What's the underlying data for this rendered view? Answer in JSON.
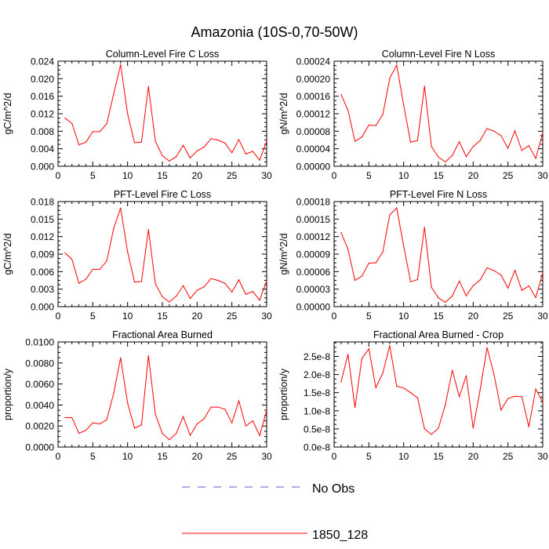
{
  "page_title": "Amazonia (10S-0,70-50W)",
  "legend": {
    "items": [
      {
        "label": "No Obs",
        "color": "#5b5bd6",
        "style": "dashed"
      },
      {
        "label": "1850_128",
        "color": "#ff0000",
        "style": "solid"
      }
    ]
  },
  "chart_data": [
    {
      "type": "line",
      "title": "Column-Level Fire C Loss",
      "ylabel": "gC/m^2/d",
      "xlabel": "",
      "xlim": [
        0,
        30
      ],
      "ylim": [
        0,
        0.024
      ],
      "x_ticks": [
        0,
        5,
        10,
        15,
        20,
        25,
        30
      ],
      "y_ticks": [
        0,
        0.004,
        0.008,
        0.012,
        0.016,
        0.02,
        0.024
      ],
      "y_tick_labels": [
        "0.000",
        "0.004",
        "0.008",
        "0.012",
        "0.016",
        "0.020",
        "0.024"
      ],
      "series": [
        {
          "name": "1850_128",
          "color": "#ff0000",
          "x": [
            1,
            2,
            3,
            4,
            5,
            6,
            7,
            8,
            9,
            10,
            11,
            12,
            13,
            14,
            15,
            16,
            17,
            18,
            19,
            20,
            21,
            22,
            23,
            24,
            25,
            26,
            27,
            28,
            29,
            30
          ],
          "values": [
            0.011,
            0.0098,
            0.0049,
            0.0055,
            0.0079,
            0.0079,
            0.0097,
            0.0165,
            0.0232,
            0.012,
            0.0054,
            0.0055,
            0.0182,
            0.0057,
            0.0024,
            0.0012,
            0.0022,
            0.0048,
            0.0019,
            0.0035,
            0.0044,
            0.0063,
            0.006,
            0.0053,
            0.0031,
            0.0061,
            0.0028,
            0.0034,
            0.0014,
            0.0057
          ]
        }
      ]
    },
    {
      "type": "line",
      "title": "Column-Level Fire N Loss",
      "ylabel": "gN/m^2/d",
      "xlabel": "",
      "xlim": [
        0,
        30
      ],
      "ylim": [
        0,
        0.00024
      ],
      "x_ticks": [
        0,
        5,
        10,
        15,
        20,
        25,
        30
      ],
      "y_ticks": [
        0,
        4e-05,
        8e-05,
        0.00012,
        0.00016,
        0.0002,
        0.00024
      ],
      "y_tick_labels": [
        "0.00000",
        "0.00004",
        "0.00008",
        "0.00012",
        "0.00016",
        "0.00020",
        "0.00024"
      ],
      "series": [
        {
          "name": "1850_128",
          "color": "#ff0000",
          "x": [
            1,
            2,
            3,
            4,
            5,
            6,
            7,
            8,
            9,
            10,
            11,
            12,
            13,
            14,
            15,
            16,
            17,
            18,
            19,
            20,
            21,
            22,
            23,
            24,
            25,
            26,
            27,
            28,
            29,
            30
          ],
          "values": [
            0.000164,
            0.000128,
            5.7e-05,
            6.7e-05,
            9.4e-05,
            9.3e-05,
            0.000118,
            0.000201,
            0.000231,
            0.00014,
            5.5e-05,
            5.9e-05,
            0.000183,
            4.5e-05,
            2.1e-05,
            1e-05,
            2.5e-05,
            5.6e-05,
            2.2e-05,
            4.5e-05,
            5.9e-05,
            8.6e-05,
            8e-05,
            7e-05,
            4.1e-05,
            8.1e-05,
            3.6e-05,
            4.7e-05,
            1.8e-05,
            7.7e-05
          ]
        }
      ]
    },
    {
      "type": "line",
      "title": "PFT-Level Fire C Loss",
      "ylabel": "gC/m^2/d",
      "xlabel": "",
      "xlim": [
        0,
        30
      ],
      "ylim": [
        0,
        0.018
      ],
      "x_ticks": [
        0,
        5,
        10,
        15,
        20,
        25,
        30
      ],
      "y_ticks": [
        0,
        0.003,
        0.006,
        0.009,
        0.012,
        0.015,
        0.018
      ],
      "y_tick_labels": [
        "0.000",
        "0.003",
        "0.006",
        "0.009",
        "0.012",
        "0.015",
        "0.018"
      ],
      "series": [
        {
          "name": "1850_128",
          "color": "#ff0000",
          "x": [
            1,
            2,
            3,
            4,
            5,
            6,
            7,
            8,
            9,
            10,
            11,
            12,
            13,
            14,
            15,
            16,
            17,
            18,
            19,
            20,
            21,
            22,
            23,
            24,
            25,
            26,
            27,
            28,
            29,
            30
          ],
          "values": [
            0.0092,
            0.0081,
            0.004,
            0.0047,
            0.0064,
            0.0064,
            0.0078,
            0.0134,
            0.0169,
            0.0094,
            0.0042,
            0.0043,
            0.0132,
            0.0039,
            0.0017,
            0.0008,
            0.0018,
            0.0036,
            0.0014,
            0.0028,
            0.0034,
            0.0048,
            0.0045,
            0.004,
            0.0025,
            0.0046,
            0.0021,
            0.0026,
            0.0011,
            0.0044
          ]
        }
      ]
    },
    {
      "type": "line",
      "title": "PFT-Level Fire N Loss",
      "ylabel": "gN/m^2/d",
      "xlabel": "",
      "xlim": [
        0,
        30
      ],
      "ylim": [
        0,
        0.00018
      ],
      "x_ticks": [
        0,
        5,
        10,
        15,
        20,
        25,
        30
      ],
      "y_ticks": [
        0,
        3e-05,
        6e-05,
        9e-05,
        0.00012,
        0.00015,
        0.00018
      ],
      "y_tick_labels": [
        "0.00000",
        "0.00003",
        "0.00006",
        "0.00009",
        "0.00012",
        "0.00015",
        "0.00018"
      ],
      "series": [
        {
          "name": "1850_128",
          "color": "#ff0000",
          "x": [
            1,
            2,
            3,
            4,
            5,
            6,
            7,
            8,
            9,
            10,
            11,
            12,
            13,
            14,
            15,
            16,
            17,
            18,
            19,
            20,
            21,
            22,
            23,
            24,
            25,
            26,
            27,
            28,
            29,
            30
          ],
          "values": [
            0.000127,
            9.84e-05,
            4.51e-05,
            5.24e-05,
            7.46e-05,
            7.51e-05,
            9.36e-05,
            0.000157,
            0.000169,
            0.000104,
            4.26e-05,
            4.64e-05,
            0.000136,
            3.31e-05,
            1.5e-05,
            7.5e-06,
            1.84e-05,
            4.38e-05,
            1.87e-05,
            3.6e-05,
            4.58e-05,
            6.65e-05,
            6.17e-05,
            5.44e-05,
            3.17e-05,
            6.23e-05,
            2.79e-05,
            3.57e-05,
            1.56e-05,
            5.82e-05
          ]
        }
      ]
    },
    {
      "type": "line",
      "title": "Fractional Area Burned",
      "ylabel": "proportion/y",
      "xlabel": "",
      "xlim": [
        0,
        30
      ],
      "ylim": [
        0,
        0.01
      ],
      "x_ticks": [
        0,
        5,
        10,
        15,
        20,
        25,
        30
      ],
      "y_ticks": [
        0,
        0.002,
        0.004,
        0.006,
        0.008,
        0.01
      ],
      "y_tick_labels": [
        "0.0000",
        "0.0020",
        "0.0040",
        "0.0060",
        "0.0080",
        "0.0100"
      ],
      "series": [
        {
          "name": "1850_128",
          "color": "#ff0000",
          "x": [
            1,
            2,
            3,
            4,
            5,
            6,
            7,
            8,
            9,
            10,
            11,
            12,
            13,
            14,
            15,
            16,
            17,
            18,
            19,
            20,
            21,
            22,
            23,
            24,
            25,
            26,
            27,
            28,
            29,
            30
          ],
          "values": [
            0.0028,
            0.0028,
            0.0013,
            0.0016,
            0.0023,
            0.0022,
            0.0026,
            0.0051,
            0.0085,
            0.0042,
            0.0018,
            0.0021,
            0.0087,
            0.0031,
            0.0013,
            0.0007,
            0.0013,
            0.0029,
            0.0011,
            0.0022,
            0.0027,
            0.0038,
            0.0038,
            0.0036,
            0.0023,
            0.0044,
            0.002,
            0.0025,
            0.0011,
            0.0035
          ]
        }
      ]
    },
    {
      "type": "line",
      "title": "Fractional Area Burned - Crop",
      "ylabel": "proportion/y",
      "xlabel": "",
      "xlim": [
        0,
        30
      ],
      "ylim": [
        0,
        2.9e-08
      ],
      "x_ticks": [
        0,
        5,
        10,
        15,
        20,
        25,
        30
      ],
      "y_ticks": [
        0,
        5e-09,
        1e-08,
        1.5e-08,
        2e-08,
        2.5e-08
      ],
      "y_tick_labels": [
        "0.0e-8",
        "0.5e-8",
        "1.0e-8",
        "1.5e-8",
        "2.0e-8",
        "2.5e-8"
      ],
      "series": [
        {
          "name": "1850_128",
          "color": "#ff0000",
          "x": [
            1,
            2,
            3,
            4,
            5,
            6,
            7,
            8,
            9,
            10,
            11,
            12,
            13,
            14,
            15,
            16,
            17,
            18,
            19,
            20,
            21,
            22,
            23,
            24,
            25,
            26,
            27,
            28,
            29,
            30
          ],
          "values": [
            1.8e-08,
            2.56e-08,
            1.09e-08,
            2.45e-08,
            2.71e-08,
            1.64e-08,
            2.04e-08,
            2.8e-08,
            1.68e-08,
            1.63e-08,
            1.5e-08,
            1.36e-08,
            5e-09,
            3.5e-09,
            5.2e-09,
            1.17e-08,
            2.12e-08,
            1.39e-08,
            1.97e-08,
            5.2e-09,
            1.58e-08,
            2.74e-08,
            2e-08,
            1.02e-08,
            1.34e-08,
            1.4e-08,
            1.39e-08,
            5.6e-09,
            1.6e-08,
            1.24e-08
          ]
        }
      ]
    }
  ]
}
